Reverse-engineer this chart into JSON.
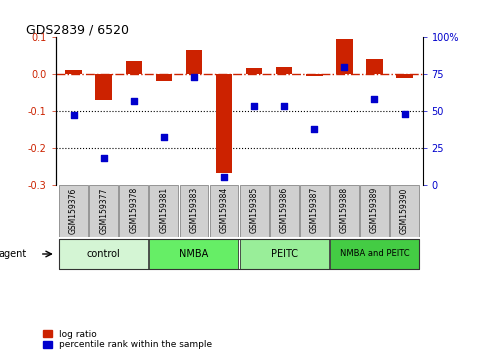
{
  "title": "GDS2839 / 6520",
  "samples": [
    "GSM159376",
    "GSM159377",
    "GSM159378",
    "GSM159381",
    "GSM159383",
    "GSM159384",
    "GSM159385",
    "GSM159386",
    "GSM159387",
    "GSM159388",
    "GSM159389",
    "GSM159390"
  ],
  "log_ratio": [
    0.01,
    -0.07,
    0.035,
    -0.02,
    0.065,
    -0.27,
    0.015,
    0.02,
    -0.005,
    0.095,
    0.04,
    -0.01
  ],
  "percentile_rank": [
    47,
    18,
    57,
    32,
    73,
    5,
    53,
    53,
    38,
    80,
    58,
    48
  ],
  "groups": [
    {
      "label": "control",
      "start": 0,
      "end": 2,
      "color": "#d4f5d4"
    },
    {
      "label": "NMBA",
      "start": 3,
      "end": 5,
      "color": "#66ee66"
    },
    {
      "label": "PEITC",
      "start": 6,
      "end": 8,
      "color": "#99ee99"
    },
    {
      "label": "NMBA and PEITC",
      "start": 9,
      "end": 11,
      "color": "#44cc44"
    }
  ],
  "ylim_left": [
    -0.3,
    0.1
  ],
  "ylim_right": [
    0,
    100
  ],
  "yticks_left": [
    -0.3,
    -0.2,
    -0.1,
    0.0,
    0.1
  ],
  "yticks_right": [
    0,
    25,
    50,
    75,
    100
  ],
  "bar_color": "#cc2200",
  "dot_color": "#0000cc",
  "hline_color": "#cc2200",
  "dotted_lines": [
    -0.1,
    -0.2
  ],
  "agent_label": "agent",
  "legend_items": [
    "log ratio",
    "percentile rank within the sample"
  ],
  "sample_box_color": "#d0d0d0",
  "bar_width": 0.55
}
